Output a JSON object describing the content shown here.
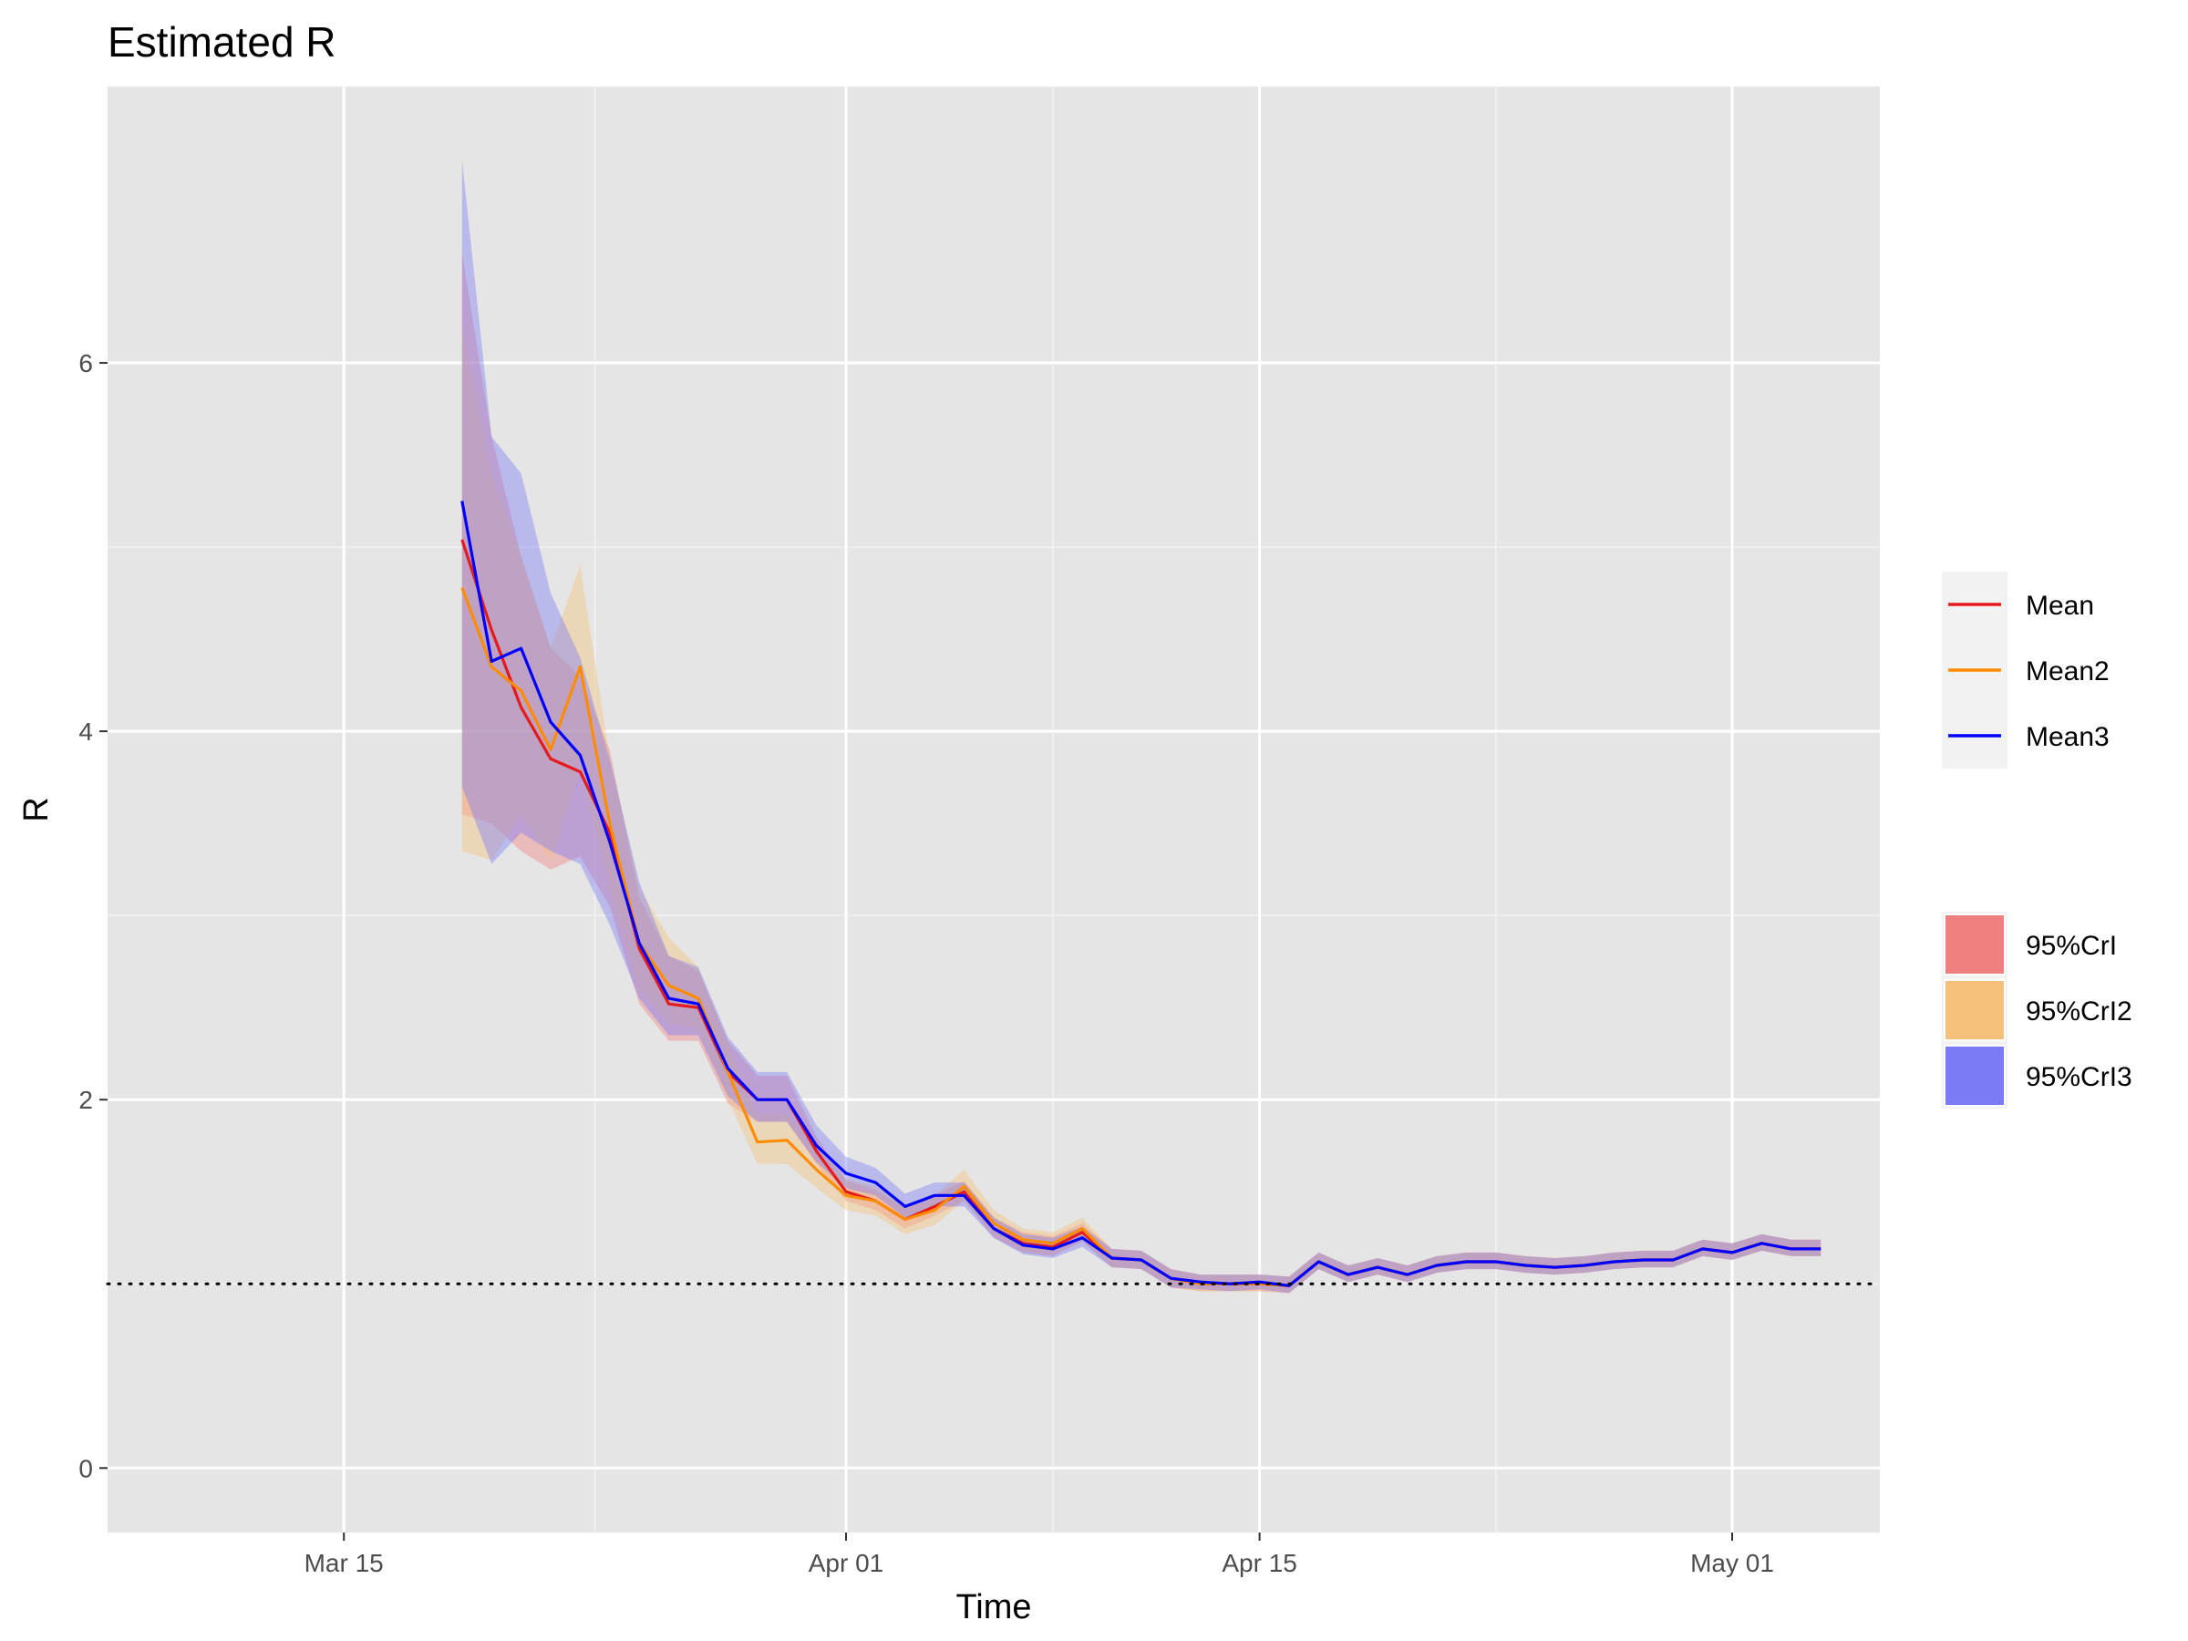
{
  "chart_data": {
    "type": "line",
    "title": "Estimated R",
    "xlabel": "Time",
    "ylabel": "R",
    "x_axis": {
      "range": [
        "2020-03-07",
        "2020-05-06"
      ],
      "ticks": [
        "2020-03-15",
        "2020-04-01",
        "2020-04-15",
        "2020-05-01"
      ],
      "tick_labels": [
        "Mar 15",
        "Apr 01",
        "Apr 15",
        "May 01"
      ]
    },
    "y_axis": {
      "range": [
        -0.35,
        7.5
      ],
      "ticks": [
        0,
        2,
        4,
        6
      ],
      "tick_labels": [
        "0",
        "2",
        "4",
        "6"
      ]
    },
    "grid": true,
    "background": "#e5e5e5",
    "reference_line": {
      "y": 1,
      "style": "dotted",
      "color": "#000000"
    },
    "dates": [
      "2020-03-19",
      "2020-03-20",
      "2020-03-21",
      "2020-03-22",
      "2020-03-23",
      "2020-03-24",
      "2020-03-25",
      "2020-03-26",
      "2020-03-27",
      "2020-03-28",
      "2020-03-29",
      "2020-03-30",
      "2020-03-31",
      "2020-04-01",
      "2020-04-02",
      "2020-04-03",
      "2020-04-04",
      "2020-04-05",
      "2020-04-06",
      "2020-04-07",
      "2020-04-08",
      "2020-04-09",
      "2020-04-10",
      "2020-04-11",
      "2020-04-12",
      "2020-04-13",
      "2020-04-14",
      "2020-04-15",
      "2020-04-16",
      "2020-04-17",
      "2020-04-18",
      "2020-04-19",
      "2020-04-20",
      "2020-04-21",
      "2020-04-22",
      "2020-04-23",
      "2020-04-24",
      "2020-04-25",
      "2020-04-26",
      "2020-04-27",
      "2020-04-28",
      "2020-04-29",
      "2020-04-30",
      "2020-05-01",
      "2020-05-02",
      "2020-05-03",
      "2020-05-04"
    ],
    "series": [
      {
        "name": "Mean",
        "band_name": "95%CrI",
        "line_color": "#e41a1c",
        "band_color": "#f08080",
        "mean": [
          5.04,
          4.55,
          4.13,
          3.85,
          3.78,
          3.45,
          2.82,
          2.52,
          2.5,
          2.15,
          2.0,
          2.0,
          1.72,
          1.5,
          1.45,
          1.35,
          1.42,
          1.5,
          1.3,
          1.22,
          1.2,
          1.28,
          1.14,
          1.13,
          1.03,
          1.0,
          1.0,
          1.0,
          0.99,
          1.12,
          1.05,
          1.09,
          1.05,
          1.1,
          1.12,
          1.12,
          1.1,
          1.09,
          1.1,
          1.12,
          1.13,
          1.13,
          1.19,
          1.17,
          1.22,
          1.19,
          1.19
        ],
        "lower": [
          3.55,
          3.5,
          3.35,
          3.25,
          3.32,
          3.05,
          2.52,
          2.32,
          2.32,
          1.98,
          1.88,
          1.88,
          1.65,
          1.45,
          1.4,
          1.3,
          1.37,
          1.45,
          1.25,
          1.17,
          1.15,
          1.23,
          1.09,
          1.08,
          0.98,
          0.96,
          0.96,
          0.96,
          0.95,
          1.08,
          1.01,
          1.05,
          1.01,
          1.06,
          1.08,
          1.08,
          1.06,
          1.05,
          1.06,
          1.08,
          1.09,
          1.09,
          1.15,
          1.13,
          1.18,
          1.15,
          1.15
        ],
        "upper": [
          6.6,
          5.6,
          4.95,
          4.45,
          4.3,
          3.9,
          3.1,
          2.78,
          2.7,
          2.32,
          2.13,
          2.13,
          1.8,
          1.56,
          1.51,
          1.41,
          1.48,
          1.56,
          1.36,
          1.28,
          1.26,
          1.33,
          1.19,
          1.18,
          1.08,
          1.05,
          1.05,
          1.05,
          1.04,
          1.17,
          1.1,
          1.14,
          1.1,
          1.15,
          1.17,
          1.17,
          1.15,
          1.14,
          1.15,
          1.17,
          1.18,
          1.18,
          1.24,
          1.22,
          1.27,
          1.24,
          1.24
        ]
      },
      {
        "name": "Mean2",
        "band_name": "95%CrI2",
        "line_color": "#ff8c00",
        "band_color": "#f5c07a",
        "mean": [
          4.78,
          4.35,
          4.22,
          3.9,
          4.35,
          3.5,
          2.85,
          2.62,
          2.55,
          2.15,
          1.77,
          1.78,
          1.62,
          1.48,
          1.45,
          1.35,
          1.4,
          1.53,
          1.33,
          1.24,
          1.22,
          1.3,
          1.14,
          1.13,
          1.03,
          1.0,
          1.0,
          1.0,
          0.99,
          1.12,
          1.05,
          1.09,
          1.05,
          1.1,
          1.12,
          1.12,
          1.1,
          1.09,
          1.1,
          1.12,
          1.13,
          1.13,
          1.19,
          1.17,
          1.22,
          1.19,
          1.19
        ],
        "lower": [
          3.35,
          3.3,
          3.55,
          3.3,
          3.8,
          3.15,
          2.6,
          2.42,
          2.38,
          2.0,
          1.65,
          1.65,
          1.52,
          1.4,
          1.37,
          1.27,
          1.32,
          1.45,
          1.27,
          1.18,
          1.16,
          1.24,
          1.09,
          1.08,
          0.98,
          0.96,
          0.96,
          0.96,
          0.95,
          1.08,
          1.01,
          1.05,
          1.01,
          1.06,
          1.08,
          1.08,
          1.06,
          1.05,
          1.06,
          1.08,
          1.09,
          1.09,
          1.15,
          1.13,
          1.18,
          1.15,
          1.15
        ],
        "upper": [
          6.2,
          5.4,
          4.95,
          4.45,
          4.9,
          3.85,
          3.15,
          2.88,
          2.72,
          2.3,
          1.92,
          1.92,
          1.73,
          1.57,
          1.53,
          1.43,
          1.48,
          1.62,
          1.4,
          1.3,
          1.28,
          1.36,
          1.19,
          1.18,
          1.08,
          1.05,
          1.05,
          1.05,
          1.04,
          1.17,
          1.1,
          1.14,
          1.1,
          1.15,
          1.17,
          1.17,
          1.15,
          1.14,
          1.15,
          1.17,
          1.18,
          1.18,
          1.24,
          1.22,
          1.27,
          1.24,
          1.24
        ]
      },
      {
        "name": "Mean3",
        "band_name": "95%CrI3",
        "line_color": "#0000ff",
        "band_color": "#7b7bf5",
        "mean": [
          5.25,
          4.38,
          4.45,
          4.05,
          3.87,
          3.4,
          2.85,
          2.55,
          2.52,
          2.17,
          2.0,
          2.0,
          1.75,
          1.6,
          1.55,
          1.42,
          1.48,
          1.48,
          1.3,
          1.21,
          1.19,
          1.25,
          1.14,
          1.13,
          1.03,
          1.01,
          1.0,
          1.01,
          0.99,
          1.12,
          1.05,
          1.09,
          1.05,
          1.1,
          1.12,
          1.12,
          1.1,
          1.09,
          1.1,
          1.12,
          1.13,
          1.13,
          1.19,
          1.17,
          1.22,
          1.19,
          1.19
        ],
        "lower": [
          3.7,
          3.28,
          3.45,
          3.35,
          3.28,
          2.95,
          2.55,
          2.35,
          2.35,
          2.02,
          1.88,
          1.88,
          1.66,
          1.52,
          1.48,
          1.36,
          1.42,
          1.42,
          1.25,
          1.16,
          1.14,
          1.2,
          1.09,
          1.08,
          0.98,
          0.97,
          0.96,
          0.97,
          0.95,
          1.08,
          1.01,
          1.05,
          1.01,
          1.06,
          1.08,
          1.08,
          1.06,
          1.05,
          1.06,
          1.08,
          1.09,
          1.09,
          1.15,
          1.13,
          1.18,
          1.15,
          1.15
        ],
        "upper": [
          7.1,
          5.6,
          5.4,
          4.75,
          4.4,
          3.85,
          3.18,
          2.78,
          2.72,
          2.34,
          2.15,
          2.15,
          1.86,
          1.69,
          1.63,
          1.49,
          1.55,
          1.55,
          1.36,
          1.27,
          1.25,
          1.31,
          1.19,
          1.18,
          1.08,
          1.05,
          1.05,
          1.05,
          1.04,
          1.17,
          1.1,
          1.14,
          1.1,
          1.15,
          1.17,
          1.17,
          1.15,
          1.14,
          1.15,
          1.17,
          1.18,
          1.18,
          1.24,
          1.22,
          1.27,
          1.24,
          1.24
        ]
      }
    ],
    "legend": {
      "placement": "right",
      "line_entries": [
        "Mean",
        "Mean2",
        "Mean3"
      ],
      "band_entries": [
        "95%CrI",
        "95%CrI2",
        "95%CrI3"
      ]
    }
  }
}
